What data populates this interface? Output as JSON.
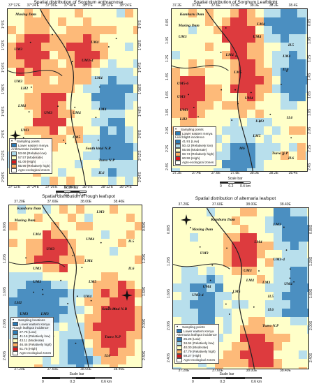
{
  "panels": [
    {
      "title": "Spatial distribution of Sorghum anthracnose",
      "top_ticks": [
        "37°12'E",
        "37°24'E",
        "37°36'E",
        "37°48'E",
        "38°0'E",
        "38°12'E",
        "38°24'E"
      ],
      "bottom_ticks": [
        "37°12'E",
        "37°24'E",
        "37°36'E",
        "37°48'E",
        "38°0'E",
        "38°12'E",
        "38°24'E"
      ],
      "left_ticks": [
        "1°0'S",
        "1°12'S",
        "1°24'S",
        "1°36'S",
        "1°48'S",
        "2°0'S",
        "2°12'S",
        "2°24'S"
      ],
      "right_ticks": [
        "1°0'S",
        "1°12'S",
        "1°24'S",
        "1°36'S",
        "1°48'S",
        "2°0'S",
        "2°12'S",
        "2°24'S"
      ],
      "places": [
        "Masing Dam",
        "LM4",
        "LM4",
        "UM3",
        "UM3-4",
        "LM4",
        "UM3",
        "LH2",
        "LM4",
        "UM3",
        "UM4",
        "UM3",
        "LM3",
        "LM5",
        "UM3",
        "LH2",
        "UM3",
        "South kitui N.R",
        "IL6",
        "Tsavo N.P"
      ],
      "legend_title": "",
      "legend": [
        "Sampling points",
        "Lower eastern Kenya",
        "Anthracnose incidence",
        "53.66 (Relative low)",
        "57.57 (Moderate)",
        "61.09 (High)",
        "65.99 (Relatively high)",
        "Agro-ecological zones"
      ],
      "scale_title": "Scale bar",
      "scale_nums": [
        "0",
        "0.1",
        "0.2 km"
      ]
    },
    {
      "title": "Spatial distribution of Sorghum Leafblight",
      "top_ticks": [
        "37.2E",
        "37.4E",
        "37.6E",
        "37.8E",
        "38.0E",
        "38.2E",
        "38.4E"
      ],
      "bottom_ticks": [
        "37.2E",
        "37.4E",
        "37.6E",
        "37.8E",
        "38.0E",
        "38.2E",
        "38.4E"
      ],
      "left_ticks": [
        "0.8S",
        "1.0S",
        "1.2S",
        "1.4S",
        "1.6S",
        "1.8S",
        "2.0S",
        "2.2S",
        "2.4S"
      ],
      "right_ticks": [
        "0.8S",
        "1.0S",
        "1.2S",
        "1.4S",
        "1.6S",
        "1.8S",
        "2.0S",
        "2.2S",
        "2.4S"
      ],
      "places": [
        "Kamburu Dam",
        "Masing Dam",
        "LM4",
        "UM3",
        "UM4",
        "LM4",
        "LM5",
        "IL5",
        "LM4",
        "IL6",
        "UM5-6",
        "UM3",
        "UM4",
        "UM3",
        "LH2",
        "UM3",
        "LM5",
        "IL6",
        "Tsavo N.P",
        "M6",
        "IL6"
      ],
      "legend_title": "",
      "legend": [
        "Sampling points",
        "Lower eastern Kenya",
        "Leaf blight incidence",
        "41.91 (Low)",
        "50.42 (Relatively low)",
        "55.56 (Moderate)",
        "60.73 (Relatively high)",
        "60.59 (High)",
        "Agro-ecological zones"
      ],
      "scale_title": "Scale bar",
      "scale_nums": [
        "0",
        "0.2",
        "0.4 km"
      ]
    },
    {
      "title": "Spatial distribution of rough leafspot",
      "top_ticks": [
        "37.20E",
        "37.60E",
        "38.00E",
        "38.40E"
      ],
      "bottom_ticks": [
        "37.20E",
        "37.60E",
        "38.00E",
        "38.40E"
      ],
      "left_ticks": [
        "0.80S",
        "1.20S",
        "1.60S",
        "2.00S",
        "2.40S"
      ],
      "right_ticks": [
        "0.80S",
        "1.20S",
        "1.60S",
        "2.00S",
        "2.40S"
      ],
      "places": [
        "Kamburu Dam",
        "Masing Dam",
        "LM3",
        "LM4",
        "UM4",
        "IL5",
        "UM3",
        "LM4",
        "IL6",
        "UM3",
        "LM5",
        "UM3",
        "UM4",
        "LH2",
        "UM3",
        "LM3",
        "South kitui N.R",
        "Tsavo N.P",
        "IL6"
      ],
      "legend_title": "Rough leafspot incidence",
      "legend": [
        "Sampling locations",
        "Lower eastern Kenya",
        "27.76 (Low)",
        "41.16 (Relatively low)",
        "43.11 (Moderate)",
        "46.46 (Relatively high)",
        "61.75 (High)",
        "Agro-ecological zones"
      ],
      "scale_title": "Scale bar",
      "scale_nums": [
        "0",
        "0.3",
        "0.6 km"
      ]
    },
    {
      "title": "Spatial distribution of alternaria leafspot",
      "top_ticks": [
        "37.20E",
        "37.60E",
        "38.00E",
        "38.40E"
      ],
      "bottom_ticks": [
        "37.20E",
        "37.60E",
        "38.00E",
        "38.40E"
      ],
      "left_ticks": [
        "0.80S",
        "1.20S",
        "1.60S",
        "2.00S",
        "2.40S"
      ],
      "right_ticks": [
        "0.80S",
        "1.20S",
        "1.60S",
        "2.00S",
        "2.40S"
      ],
      "places": [
        "Kamburu Dam",
        "Masing Dam",
        "LM3",
        "LM4",
        "UM3",
        "UM3-4",
        "LM4",
        "UM4",
        "UM3",
        "UM3-4",
        "LM3",
        "UM4",
        "LM5",
        "IL5",
        "IL6",
        "Tsavo N.P"
      ],
      "legend_title": "",
      "legend": [
        "Sampling points",
        "Lower eastern Kenya",
        "Alternaria leafspot incidence",
        "25.25 (Low)",
        "34.64 (Relatively low)",
        "40.00 (Moderate)",
        "47.79 (Relatively high)",
        "69.27 (High)",
        "Agro-ecological zones"
      ],
      "scale_title": "Scale bar",
      "scale_nums": [
        "0",
        "0.3",
        "0.6 km"
      ]
    }
  ],
  "north_letters": [
    "N",
    "E",
    "S",
    "W"
  ],
  "colors": {
    "high": "#d7191c",
    "relatively_high": "#fdae61",
    "moderate": "#ffffbf",
    "relatively_low": "#abd9e9",
    "low": "#2c7bb6",
    "boundary": "#555555",
    "county_line": "#222222"
  }
}
